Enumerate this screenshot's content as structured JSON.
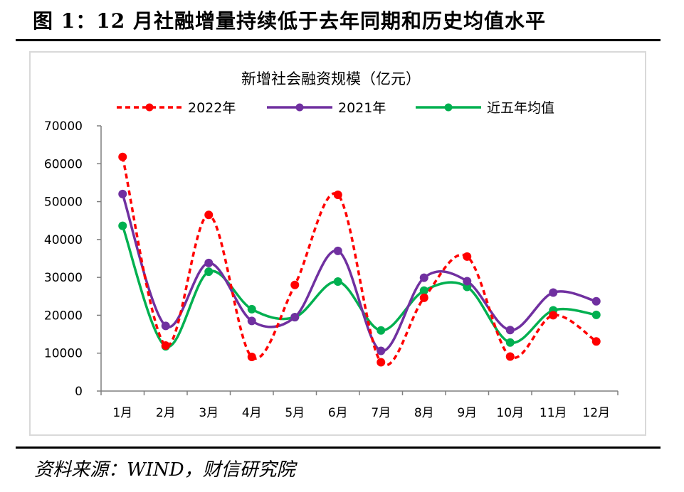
{
  "figure": {
    "title": "图 1：12 月社融增量持续低于去年同期和历史均值水平",
    "source": "资料来源：WIND，财信研究院"
  },
  "chart_data": {
    "type": "line",
    "title": "新增社会融资规模（亿元）",
    "xlabel": "",
    "ylabel": "",
    "categories": [
      "1月",
      "2月",
      "3月",
      "4月",
      "5月",
      "6月",
      "7月",
      "8月",
      "9月",
      "10月",
      "11月",
      "12月"
    ],
    "ylim": [
      0,
      70000
    ],
    "yticks": [
      0,
      10000,
      20000,
      30000,
      40000,
      50000,
      60000,
      70000
    ],
    "grid": false,
    "legend_position": "top",
    "series": [
      {
        "name": "2022年",
        "color": "#ff0000",
        "style": "dashed",
        "values": [
          61800,
          12000,
          46500,
          9000,
          28000,
          51800,
          7600,
          24600,
          35500,
          9100,
          20000,
          13100
        ]
      },
      {
        "name": "2021年",
        "color": "#7030a0",
        "style": "solid",
        "values": [
          52000,
          17200,
          33800,
          18500,
          19500,
          37000,
          10600,
          29900,
          29000,
          16100,
          26000,
          23700
        ]
      },
      {
        "name": "近五年均值",
        "color": "#00b050",
        "style": "solid",
        "values": [
          43600,
          11800,
          31500,
          21600,
          19500,
          28900,
          16000,
          26500,
          27500,
          12800,
          21300,
          20100
        ]
      }
    ]
  }
}
